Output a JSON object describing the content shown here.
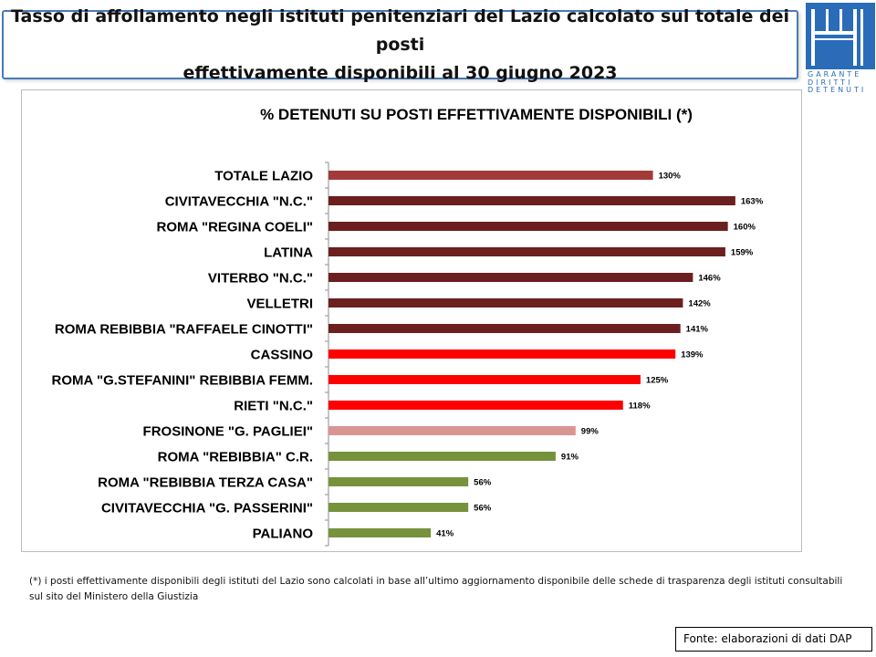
{
  "header": {
    "title": "Tasso di affollamento negli istituti penitenziari del Lazio calcolato sul totale dei posti\neffettivamente disponibili al 30 giugno 2023"
  },
  "logo": {
    "lines": [
      "GARANTE",
      "DIRITTI",
      "DETENUTI"
    ],
    "color": "#2a6cb8"
  },
  "chart_data": {
    "type": "bar",
    "orientation": "horizontal",
    "title": "% DETENUTI SU POSTI EFFETTIVAMENTE DISPONIBILI (*)",
    "xlabel": "",
    "ylabel": "",
    "xlim": [
      0,
      170
    ],
    "grid": false,
    "legend": "none",
    "categories": [
      "TOTALE LAZIO",
      "CIVITAVECCHIA \"N.C.\"",
      "ROMA \"REGINA COELI\"",
      "LATINA",
      "VITERBO \"N.C.\"",
      "VELLETRI",
      "ROMA REBIBBIA \"RAFFAELE CINOTTI\"",
      "CASSINO",
      "ROMA \"G.STEFANINI\" REBIBBIA FEMM.",
      "RIETI \"N.C.\"",
      "FROSINONE \"G. PAGLIEI\"",
      "ROMA \"REBIBBIA\" C.R.",
      "ROMA \"REBIBBIA TERZA CASA\"",
      "CIVITAVECCHIA \"G. PASSERINI\"",
      "PALIANO"
    ],
    "values": [
      130,
      163,
      160,
      159,
      146,
      142,
      141,
      139,
      125,
      118,
      99,
      91,
      56,
      56,
      41
    ],
    "data_labels": [
      "130%",
      "163%",
      "160%",
      "159%",
      "146%",
      "142%",
      "141%",
      "139%",
      "125%",
      "118%",
      "99%",
      "91%",
      "56%",
      "56%",
      "41%"
    ],
    "colors": [
      "#a33a3a",
      "#6b1f1f",
      "#6b1f1f",
      "#6b1f1f",
      "#6b1f1f",
      "#6b1f1f",
      "#6b1f1f",
      "#ff0000",
      "#ff0000",
      "#ff0000",
      "#d99594",
      "#76923c",
      "#76923c",
      "#76923c",
      "#76923c"
    ]
  },
  "footnote": {
    "text": "(*) i posti effettivamente disponibili  degli istituti del Lazio sono  calcolati in base all’ultimo aggiornamento disponibile  delle schede  di trasparenza degli istituti consultabili sul sito del Ministero della Giustizia"
  },
  "source": {
    "text": "Fonte: elaborazioni di dati DAP"
  }
}
